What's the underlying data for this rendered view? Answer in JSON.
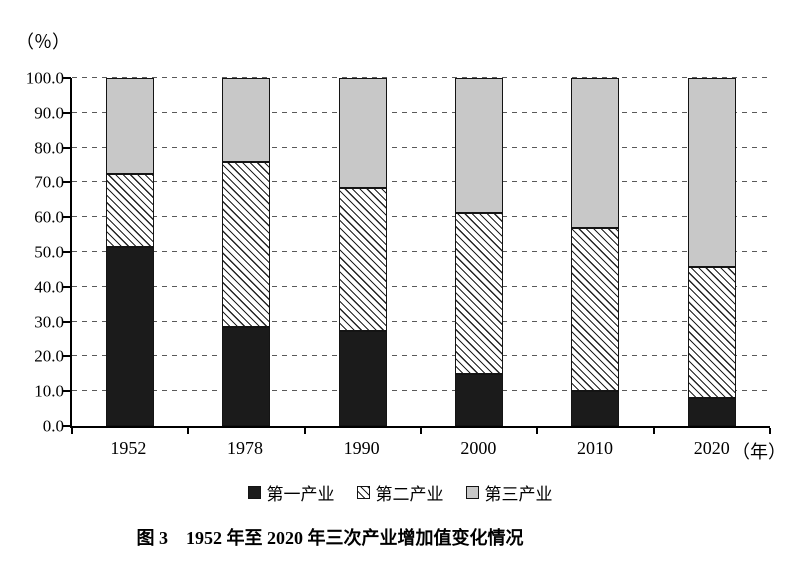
{
  "figure": {
    "caption": "图 3　1952 年至 2020 年三次产业增加值变化情况"
  },
  "chart_data": {
    "type": "bar",
    "subtype": "stacked-vertical",
    "title": "图 3 1952 年至 2020 年三次产业增加值变化情况",
    "y_unit_label": "（％）",
    "x_unit_label": "（年）",
    "categories": [
      "1952",
      "1978",
      "1990",
      "2000",
      "2010",
      "2020"
    ],
    "series": [
      {
        "name": "第一产业",
        "pattern": "solid-black",
        "values": [
          51.5,
          28.5,
          27.3,
          15.0,
          10.0,
          8.0
        ]
      },
      {
        "name": "第二产业",
        "pattern": "diagonal-hatch",
        "values": [
          20.8,
          47.5,
          41.2,
          46.3,
          47.0,
          37.8
        ]
      },
      {
        "name": "第三产业",
        "pattern": "solid-gray",
        "values": [
          27.7,
          24.0,
          31.5,
          38.7,
          43.0,
          54.2
        ]
      }
    ],
    "ylim": [
      0,
      100
    ],
    "ytick_step": 10,
    "ytick_labels": [
      "0.0",
      "10.0",
      "20.0",
      "30.0",
      "40.0",
      "50.0",
      "60.0",
      "70.0",
      "80.0",
      "90.0",
      "100.0"
    ],
    "grid": "dashed horizontal gridlines every 10",
    "legend_position": "bottom",
    "colors": {
      "primary": "#1b1b1b",
      "secondary_hatch": "#222222",
      "tertiary": "#c8c8c8",
      "grid": "#5a5a5a",
      "axis": "#000000"
    }
  }
}
